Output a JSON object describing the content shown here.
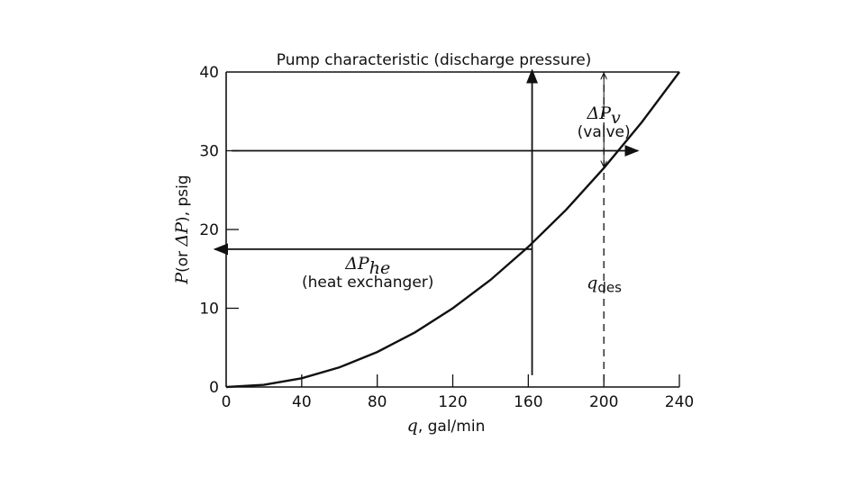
{
  "chart_data": {
    "type": "line",
    "xlabel_symbol": "q",
    "xlabel_rest": ", gal/min",
    "ylabel_prefix": "P",
    "ylabel_mid": "(or ",
    "ylabel_delta": "ΔP",
    "ylabel_suffix": "), psig",
    "xlim": [
      0,
      240
    ],
    "ylim": [
      0,
      40
    ],
    "x_ticks": [
      0,
      40,
      80,
      120,
      160,
      200,
      240
    ],
    "y_ticks": [
      0,
      10,
      20,
      30,
      40
    ],
    "grid": false,
    "curve": {
      "x": [
        0,
        20,
        40,
        60,
        80,
        100,
        120,
        140,
        160,
        180,
        200,
        220,
        240
      ],
      "y": [
        0,
        0.28,
        1.11,
        2.5,
        4.44,
        6.94,
        10.0,
        13.6,
        17.8,
        22.5,
        27.8,
        33.6,
        40.0
      ]
    },
    "pump_characteristic": {
      "y": 40,
      "label": "Pump characteristic (discharge pressure)"
    },
    "operating_point": {
      "x": 162,
      "y": 17.5
    },
    "arrows": {
      "vertical_line_x": 162,
      "vertical_from_y": 1.5,
      "left_arrow": {
        "y": 17.5,
        "from_x": 162,
        "to_x": -6
      },
      "right_arrow": {
        "y": 30,
        "from_x": 3,
        "to_x": 218
      }
    },
    "design_flow": {
      "x": 200,
      "y_at_curve": 27.8,
      "label_symbol": "q",
      "label_sub": "des"
    },
    "annotations": {
      "dpv_symbol": "ΔP",
      "dpv_sub": "v",
      "dpv_label": "(valve)",
      "dphe_symbol": "ΔP",
      "dphe_sub": "he",
      "dphe_label": "(heat exchanger)"
    }
  }
}
